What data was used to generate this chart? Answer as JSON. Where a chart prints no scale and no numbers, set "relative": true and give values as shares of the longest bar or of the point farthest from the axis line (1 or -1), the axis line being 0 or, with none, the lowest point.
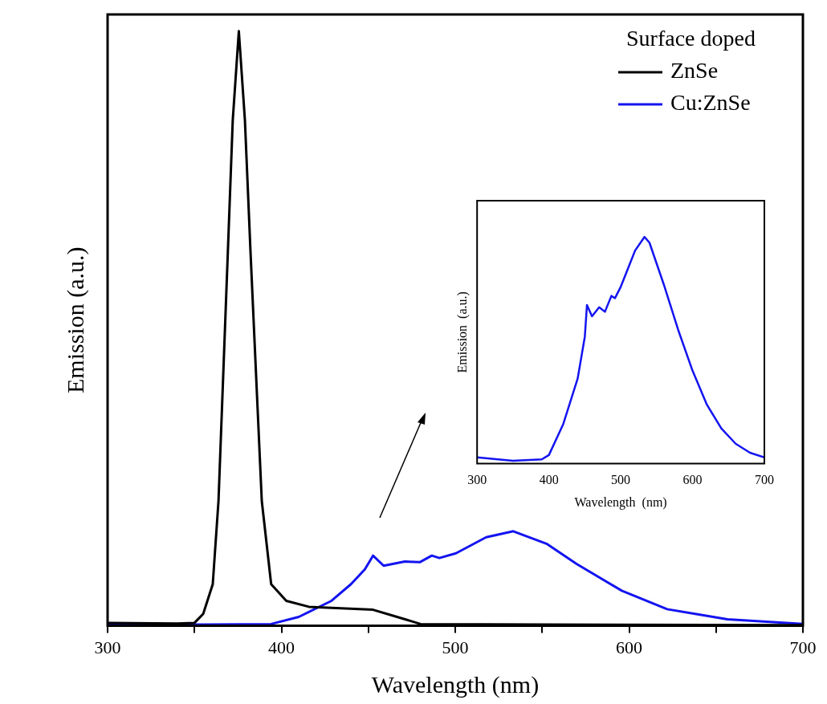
{
  "chart_data": [
    {
      "type": "line",
      "xlabel": "Wavelength (nm)",
      "ylabel": "Emission (a.u.)",
      "relative": true,
      "xlim": [
        300,
        700
      ],
      "xticks": [
        300,
        {
          "value": 350,
          "label": null
        },
        400,
        {
          "value": 450,
          "label": null
        },
        500,
        {
          "value": 550,
          "label": null
        },
        600,
        {
          "value": 650,
          "label": null
        },
        700
      ],
      "grid": false,
      "legend": "top right",
      "legend_title": "Surface doped",
      "marker": "none",
      "line_style": "solid",
      "series": [
        {
          "name": "ZnSe",
          "color": "#000000",
          "x": [
            300,
            340,
            350,
            355,
            360.5,
            363.8,
            369.2,
            372,
            375.5,
            379,
            382.2,
            388.7,
            394.1,
            402.8,
            415.8,
            452.7,
            470,
            480,
            550,
            700
          ],
          "values": [
            0.005,
            0.004,
            0.005,
            0.02,
            0.07,
            0.21,
            0.63,
            0.85,
            1,
            0.85,
            0.63,
            0.21,
            0.07,
            0.042,
            0.032,
            0.027,
            0.012,
            0.003,
            0.002,
            0.001
          ]
        },
        {
          "name": "Cu:ZnSe",
          "color": "#1414f0",
          "x": [
            300,
            350,
            394,
            410,
            428.8,
            440,
            448,
            452.7,
            458.8,
            471,
            479.6,
            486.5,
            490.9,
            500.4,
            517.8,
            533.4,
            552.5,
            569.8,
            595.8,
            621.9,
            656.6,
            700
          ],
          "values": [
            0.003,
            0.002,
            0.003,
            0.015,
            0.042,
            0.07,
            0.095,
            0.118,
            0.101,
            0.108,
            0.107,
            0.118,
            0.114,
            0.122,
            0.149,
            0.159,
            0.138,
            0.104,
            0.059,
            0.028,
            0.011,
            0.003
          ]
        }
      ]
    },
    {
      "type": "line",
      "xlabel": "Wavelength  (nm)",
      "ylabel": "Emission  (a.u.)",
      "relative": true,
      "xlim": [
        300,
        700
      ],
      "xticks": [
        300,
        400,
        500,
        600,
        700
      ],
      "grid": false,
      "legend": false,
      "marker": "none",
      "line_style": "solid",
      "series": [
        {
          "color": "#1414f0",
          "x": [
            300,
            350,
            390,
            400,
            420,
            440,
            450,
            453,
            460,
            470,
            478,
            487,
            492,
            500,
            510,
            520,
            533,
            540,
            560,
            580,
            600,
            620,
            640,
            660,
            680,
            700
          ],
          "values": [
            0.028,
            0.013,
            0.019,
            0.038,
            0.175,
            0.375,
            0.56,
            0.7,
            0.65,
            0.69,
            0.67,
            0.74,
            0.73,
            0.78,
            0.86,
            0.94,
            1,
            0.975,
            0.79,
            0.59,
            0.41,
            0.26,
            0.156,
            0.088,
            0.048,
            0.028
          ]
        }
      ]
    }
  ]
}
